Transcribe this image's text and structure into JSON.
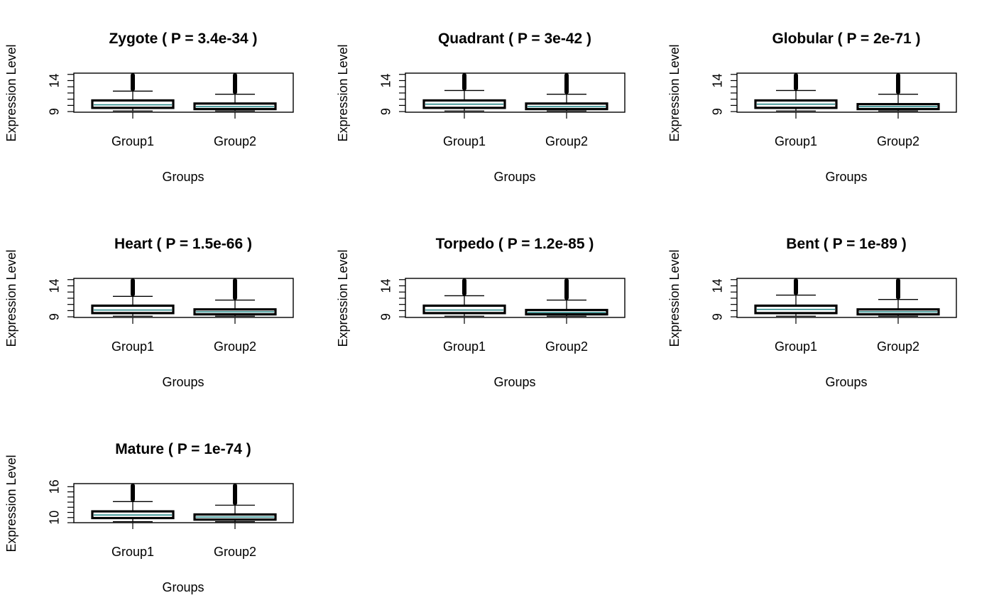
{
  "chart_data": [
    {
      "type": "box",
      "title": "Zygote  ( P = 3.4e-34 )",
      "xlabel": "Groups",
      "ylabel": "Expression Level",
      "categories": [
        "Group1",
        "Group2"
      ],
      "ylim": [
        8.9,
        15.2
      ],
      "yticks": [
        9,
        14
      ],
      "boxes": [
        {
          "min": 9.1,
          "q1": 9.6,
          "median": 10.1,
          "q3": 10.8,
          "max": 12.3,
          "outlier_max": 15.2
        },
        {
          "min": 9.1,
          "q1": 9.4,
          "median": 9.8,
          "q3": 10.3,
          "max": 11.8,
          "outlier_max": 15.2
        }
      ]
    },
    {
      "type": "box",
      "title": "Quadrant  ( P = 3e-42 )",
      "xlabel": "Groups",
      "ylabel": "Expression Level",
      "categories": [
        "Group1",
        "Group2"
      ],
      "ylim": [
        8.9,
        15.2
      ],
      "yticks": [
        9,
        14
      ],
      "boxes": [
        {
          "min": 9.1,
          "q1": 9.6,
          "median": 10.2,
          "q3": 10.8,
          "max": 12.4,
          "outlier_max": 15.2
        },
        {
          "min": 9.1,
          "q1": 9.4,
          "median": 9.8,
          "q3": 10.3,
          "max": 11.8,
          "outlier_max": 15.2
        }
      ]
    },
    {
      "type": "box",
      "title": "Globular  ( P = 2e-71 )",
      "xlabel": "Groups",
      "ylabel": "Expression Level",
      "categories": [
        "Group1",
        "Group2"
      ],
      "ylim": [
        8.9,
        15.2
      ],
      "yticks": [
        9,
        14
      ],
      "boxes": [
        {
          "min": 9.1,
          "q1": 9.6,
          "median": 10.2,
          "q3": 10.8,
          "max": 12.4,
          "outlier_max": 15.2
        },
        {
          "min": 9.1,
          "q1": 9.4,
          "median": 9.8,
          "q3": 10.2,
          "max": 11.8,
          "outlier_max": 15.2
        }
      ]
    },
    {
      "type": "box",
      "title": "Heart  ( P = 1.5e-66 )",
      "xlabel": "Groups",
      "ylabel": "Expression Level",
      "categories": [
        "Group1",
        "Group2"
      ],
      "ylim": [
        8.9,
        15.2
      ],
      "yticks": [
        9,
        14
      ],
      "boxes": [
        {
          "min": 9.1,
          "q1": 9.6,
          "median": 10.1,
          "q3": 10.8,
          "max": 12.3,
          "outlier_max": 15.2
        },
        {
          "min": 9.1,
          "q1": 9.4,
          "median": 9.8,
          "q3": 10.2,
          "max": 11.7,
          "outlier_max": 15.2
        }
      ]
    },
    {
      "type": "box",
      "title": "Torpedo  ( P = 1.2e-85 )",
      "xlabel": "Groups",
      "ylabel": "Expression Level",
      "categories": [
        "Group1",
        "Group2"
      ],
      "ylim": [
        8.9,
        15.2
      ],
      "yticks": [
        9,
        14
      ],
      "boxes": [
        {
          "min": 9.1,
          "q1": 9.6,
          "median": 10.1,
          "q3": 10.8,
          "max": 12.4,
          "outlier_max": 15.2
        },
        {
          "min": 9.1,
          "q1": 9.4,
          "median": 9.7,
          "q3": 10.1,
          "max": 11.7,
          "outlier_max": 15.2
        }
      ]
    },
    {
      "type": "box",
      "title": "Bent  ( P = 1e-89 )",
      "xlabel": "Groups",
      "ylabel": "Expression Level",
      "categories": [
        "Group1",
        "Group2"
      ],
      "ylim": [
        8.9,
        15.2
      ],
      "yticks": [
        9,
        14
      ],
      "boxes": [
        {
          "min": 9.1,
          "q1": 9.6,
          "median": 10.2,
          "q3": 10.8,
          "max": 12.5,
          "outlier_max": 15.2
        },
        {
          "min": 9.1,
          "q1": 9.4,
          "median": 9.8,
          "q3": 10.2,
          "max": 11.8,
          "outlier_max": 15.2
        }
      ]
    },
    {
      "type": "box",
      "title": "Mature  ( P = 1e-74 )",
      "xlabel": "Groups",
      "ylabel": "Expression Level",
      "categories": [
        "Group1",
        "Group2"
      ],
      "ylim": [
        9.0,
        16.6
      ],
      "yticks": [
        10,
        16
      ],
      "boxes": [
        {
          "min": 9.2,
          "q1": 9.9,
          "median": 10.5,
          "q3": 11.2,
          "max": 13.1,
          "outlier_max": 16.6
        },
        {
          "min": 9.2,
          "q1": 9.6,
          "median": 10.1,
          "q3": 10.6,
          "max": 12.4,
          "outlier_max": 16.6
        }
      ]
    }
  ],
  "colors": {
    "box_line": "#000000",
    "median": "#2a8a8a",
    "background": "#ffffff"
  }
}
